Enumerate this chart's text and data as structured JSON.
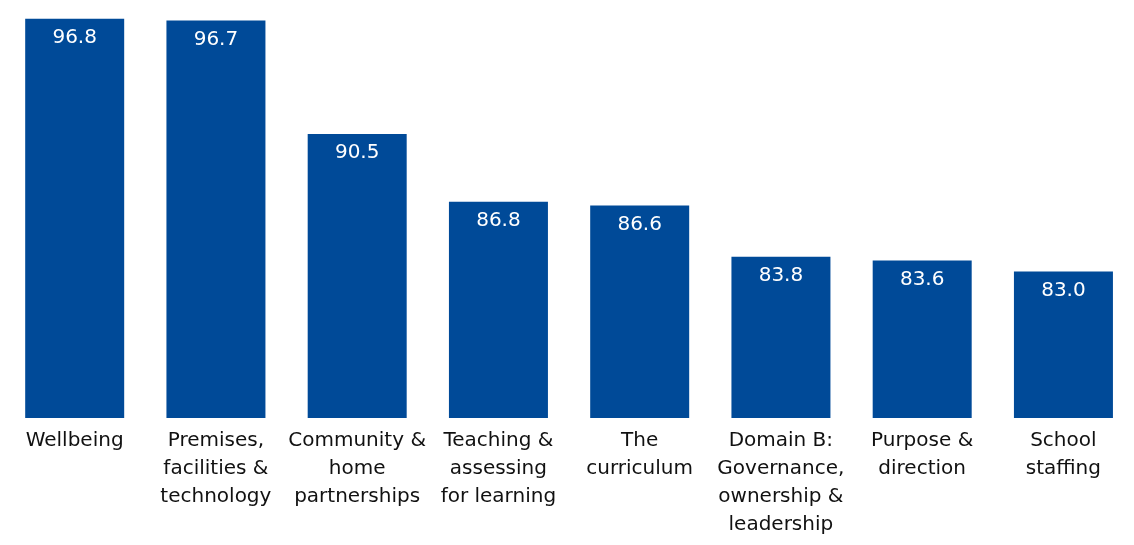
{
  "chart_data": {
    "type": "bar",
    "categories": [
      "Wellbeing",
      "Premises, facilities & technology",
      "Community & home partnerships",
      "Teaching & assessing for learning",
      "The curriculum",
      "Domain B: Governance, ownership & leadership",
      "Purpose & direction",
      "School staffing"
    ],
    "values": [
      96.8,
      96.7,
      90.5,
      86.8,
      86.6,
      83.8,
      83.6,
      83.0
    ],
    "value_labels": [
      "96.8",
      "96.7",
      "90.5",
      "86.8",
      "86.6",
      "83.8",
      "83.6",
      "83.0"
    ],
    "color": "#004a98",
    "ylim": [
      75,
      97
    ]
  }
}
